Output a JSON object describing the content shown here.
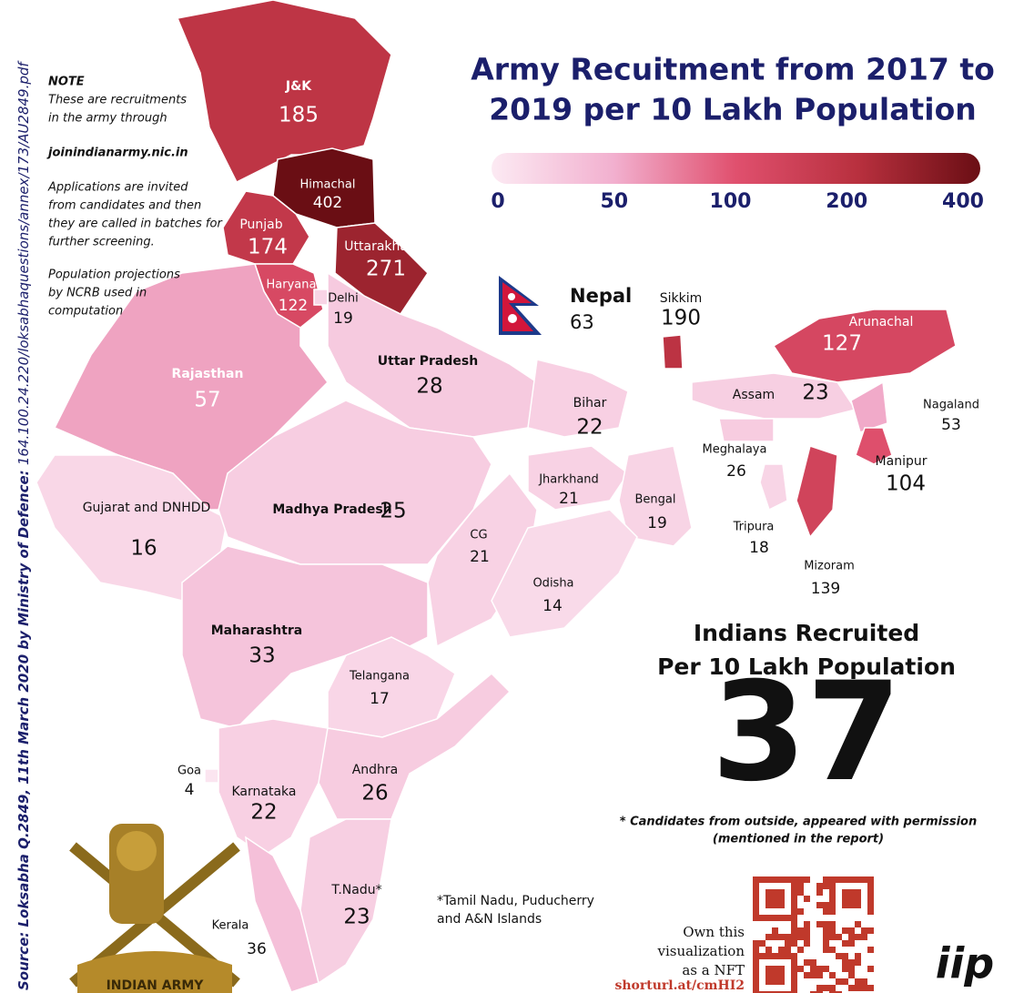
{
  "title_lines": [
    "Army Recuitment from 2017 to",
    "2019 per 10 Lakh Population"
  ],
  "legend": {
    "ticks": [
      0,
      50,
      100,
      200,
      400
    ],
    "colors": [
      "#fceaf3",
      "#f2b0cf",
      "#e0506e",
      "#b8303e",
      "#6a0e14"
    ]
  },
  "source": {
    "label": "Source: Loksabha Q.2849, 11th March 2020 by Ministry of Defence: ",
    "url": "164.100.24.220/loksabhaquestions/annex/173/AU2849.pdf"
  },
  "note": {
    "heading": "NOTE",
    "lines": [
      "These are recruitments",
      "in the army through",
      "joinindianarmy.nic.in",
      "Applications are invited",
      "from candidates and then",
      "they are called in batches for",
      "further screening.",
      "Population projections",
      "by NCRB used in",
      "computation"
    ]
  },
  "regions": [
    {
      "name": "J&K",
      "value": 185
    },
    {
      "name": "Himachal",
      "value": 402
    },
    {
      "name": "Punjab",
      "value": 174
    },
    {
      "name": "Uttarakhand",
      "value": 271
    },
    {
      "name": "Haryana",
      "value": 122
    },
    {
      "name": "Delhi",
      "value": 19
    },
    {
      "name": "Rajasthan",
      "value": 57
    },
    {
      "name": "Uttar Pradesh",
      "value": 28
    },
    {
      "name": "Bihar",
      "value": 22
    },
    {
      "name": "Sikkim",
      "value": 190
    },
    {
      "name": "Arunachal",
      "value": 127
    },
    {
      "name": "Assam",
      "value": 23
    },
    {
      "name": "Nagaland",
      "value": 53
    },
    {
      "name": "Meghalaya",
      "value": 26
    },
    {
      "name": "Manipur",
      "value": 104
    },
    {
      "name": "Tripura",
      "value": 18
    },
    {
      "name": "Mizoram",
      "value": 139
    },
    {
      "name": "Gujarat and DNHDD",
      "value": 16
    },
    {
      "name": "Madhya Pradesh",
      "value": 25
    },
    {
      "name": "Jharkhand",
      "value": 21
    },
    {
      "name": "Bengal",
      "value": 19
    },
    {
      "name": "CG",
      "value": 21
    },
    {
      "name": "Odisha",
      "value": 14
    },
    {
      "name": "Maharashtra",
      "value": 33
    },
    {
      "name": "Telangana",
      "value": 17
    },
    {
      "name": "Goa",
      "value": 4
    },
    {
      "name": "Karnataka",
      "value": 22
    },
    {
      "name": "Andhra",
      "value": 26
    },
    {
      "name": "T.Nadu*",
      "value": 23
    },
    {
      "name": "Kerala",
      "value": 36
    }
  ],
  "nepal": {
    "name": "Nepal",
    "value": 63
  },
  "summary": {
    "heading_lines": [
      "Indians Recruited",
      "Per 10 Lakh Population"
    ],
    "value": 37
  },
  "footnote_lines": [
    "* Candidates from outside, appeared with permission",
    "(mentioned in the report)"
  ],
  "tn_note_lines": [
    "*Tamil Nadu, Puducherry",
    "and A&N Islands"
  ],
  "nft": {
    "lines": [
      "Own this",
      "visualization",
      "as a NFT"
    ],
    "link": "shorturl.at/cmHI2"
  },
  "emblem_text": "INDIAN ARMY",
  "logo": "iip"
}
